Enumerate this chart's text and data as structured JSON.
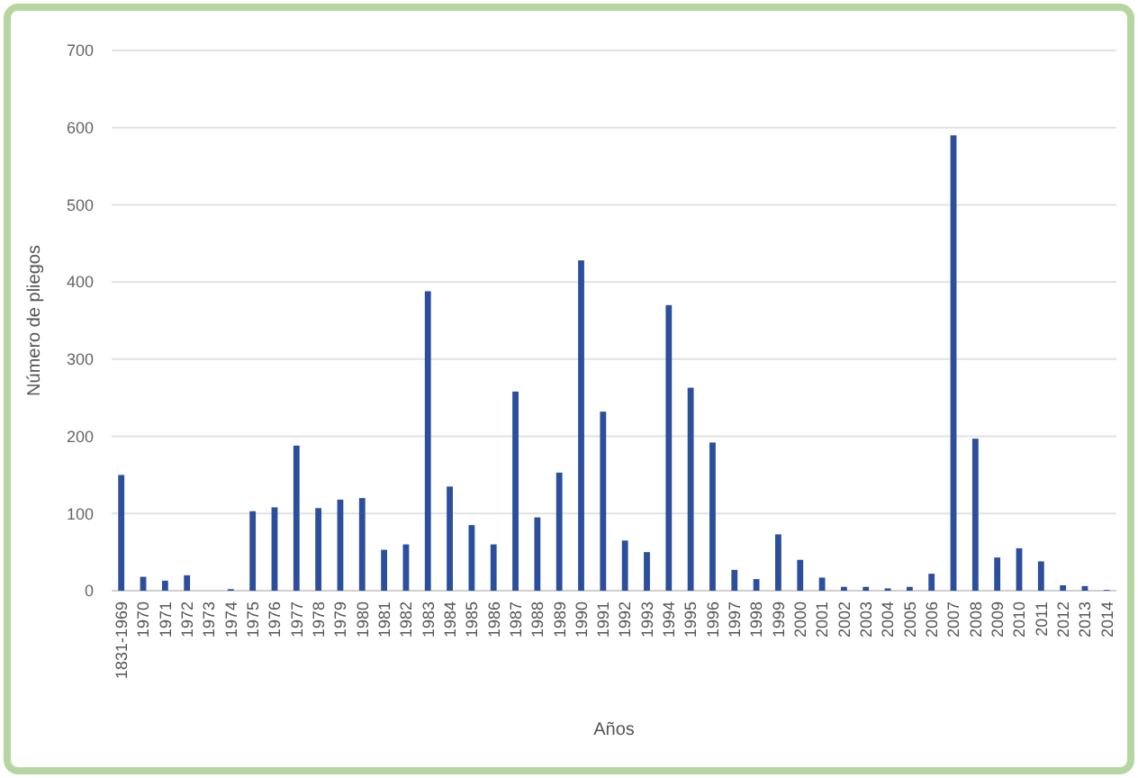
{
  "chart_data": {
    "type": "bar",
    "xlabel": "Años",
    "ylabel": "Número de pliegos",
    "categories": [
      "1831-1969",
      "1970",
      "1971",
      "1972",
      "1973",
      "1974",
      "1975",
      "1976",
      "1977",
      "1978",
      "1979",
      "1980",
      "1981",
      "1982",
      "1983",
      "1984",
      "1985",
      "1986",
      "1987",
      "1988",
      "1989",
      "1990",
      "1991",
      "1992",
      "1993",
      "1994",
      "1995",
      "1996",
      "1997",
      "1998",
      "1999",
      "2000",
      "2001",
      "2002",
      "2003",
      "2004",
      "2005",
      "2006",
      "2007",
      "2008",
      "2009",
      "2010",
      "2011",
      "2012",
      "2013",
      "2014"
    ],
    "values": [
      150,
      18,
      13,
      20,
      0,
      2,
      103,
      108,
      188,
      107,
      118,
      120,
      53,
      60,
      388,
      135,
      85,
      60,
      258,
      95,
      153,
      428,
      232,
      65,
      50,
      370,
      263,
      192,
      27,
      15,
      73,
      40,
      17,
      5,
      5,
      3,
      5,
      22,
      590,
      197,
      43,
      55,
      38,
      7,
      6,
      1
    ],
    "color": "#2b4f9c",
    "ylim": [
      0,
      700
    ],
    "yticks": [
      0,
      100,
      200,
      300,
      400,
      500,
      600,
      700
    ],
    "grid": "y"
  }
}
